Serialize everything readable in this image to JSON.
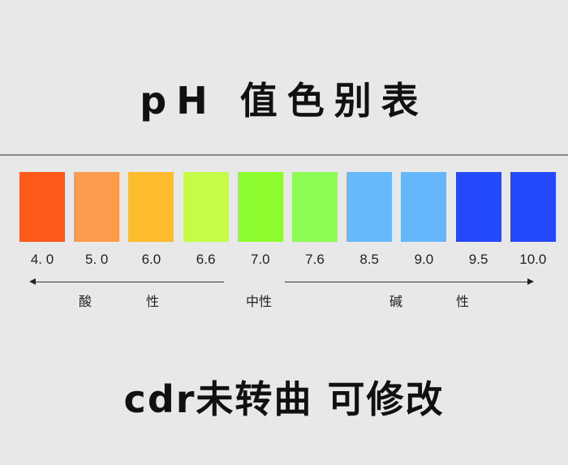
{
  "title": "pH 值色别表",
  "swatches": [
    {
      "value": "4. 0",
      "color": "#ff5a1a"
    },
    {
      "value": "5. 0",
      "color": "#fd9a4c"
    },
    {
      "value": "6.0",
      "color": "#fcbc2e"
    },
    {
      "value": "6.6",
      "color": "#c4fc48"
    },
    {
      "value": "7.0",
      "color": "#8cfc2e"
    },
    {
      "value": "7.6",
      "color": "#8afc54"
    },
    {
      "value": "8.5",
      "color": "#66bafc"
    },
    {
      "value": "9.0",
      "color": "#66b6fc"
    },
    {
      "value": "9.5",
      "color": "#2448fc"
    },
    {
      "value": "10.0",
      "color": "#2448fc"
    }
  ],
  "labels": {
    "acid_1": "酸",
    "acid_2": "性",
    "neutral": "中性",
    "base_1": "碱",
    "base_2": "性"
  },
  "footer": "cdr未转曲 可修改"
}
